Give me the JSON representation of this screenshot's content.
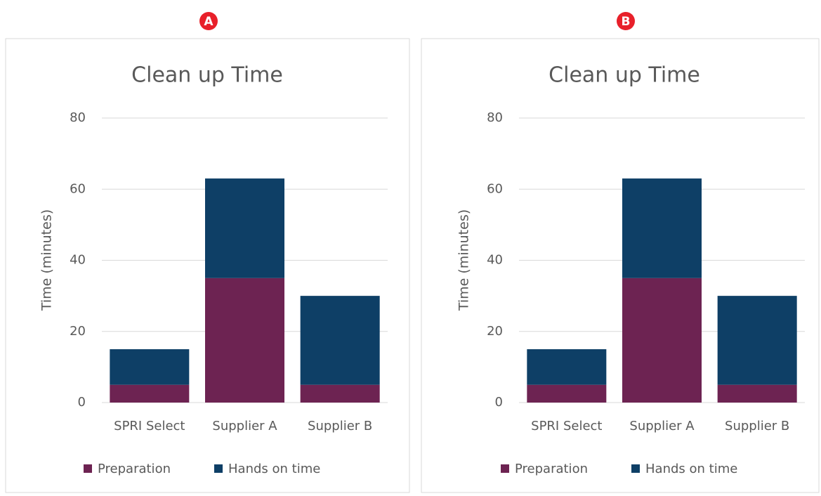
{
  "chart_data": [
    {
      "type": "bar",
      "stacked": true,
      "panel_label": "A",
      "title": "Clean up Time",
      "y_label": "Time (minutes)",
      "categories": [
        "SPRI Select",
        "Supplier A",
        "Supplier B"
      ],
      "series": [
        {
          "name": "Preparation",
          "color": "#6d2352",
          "values": [
            5,
            35,
            5
          ]
        },
        {
          "name": "Hands on time",
          "color": "#0e3f66",
          "values": [
            10,
            28,
            25
          ]
        }
      ],
      "ylim": [
        0,
        80
      ],
      "yticks": [
        0,
        20,
        40,
        60,
        80
      ],
      "grid": true,
      "legend": "bottom"
    },
    {
      "type": "bar",
      "stacked": true,
      "panel_label": "B",
      "title": "Clean up Time",
      "y_label": "Time (minutes)",
      "categories": [
        "SPRI Select",
        "Supplier A",
        "Supplier B"
      ],
      "series": [
        {
          "name": "Preparation",
          "color": "#6d2352",
          "values": [
            5,
            35,
            5
          ]
        },
        {
          "name": "Hands on time",
          "color": "#0e3f66",
          "values": [
            10,
            28,
            25
          ]
        }
      ],
      "ylim": [
        0,
        80
      ],
      "yticks": [
        0,
        20,
        40,
        60,
        80
      ],
      "grid": true,
      "legend": "bottom"
    }
  ]
}
